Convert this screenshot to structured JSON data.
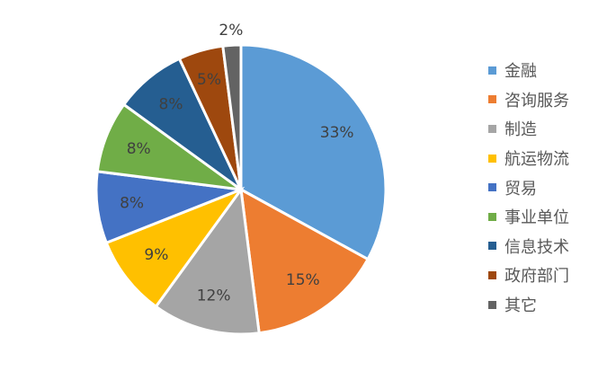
{
  "chart_data": {
    "type": "pie",
    "categories": [
      "金融",
      "咨询服务",
      "制造",
      "航运物流",
      "贸易",
      "事业单位",
      "信息技术",
      "政府部门",
      "其它"
    ],
    "values": [
      33,
      15,
      12,
      9,
      8,
      8,
      8,
      5,
      2
    ],
    "data_labels": [
      "33%",
      "15%",
      "12%",
      "9%",
      "8%",
      "8%",
      "8%",
      "5%",
      "2%"
    ],
    "colors": [
      "#5B9BD5",
      "#ED7D31",
      "#A5A5A5",
      "#FFC000",
      "#4472C4",
      "#70AD47",
      "#255E91",
      "#9E480E",
      "#636363"
    ],
    "start_angle": "12 o'clock",
    "direction": "clockwise",
    "legend_position": "right",
    "title": ""
  }
}
